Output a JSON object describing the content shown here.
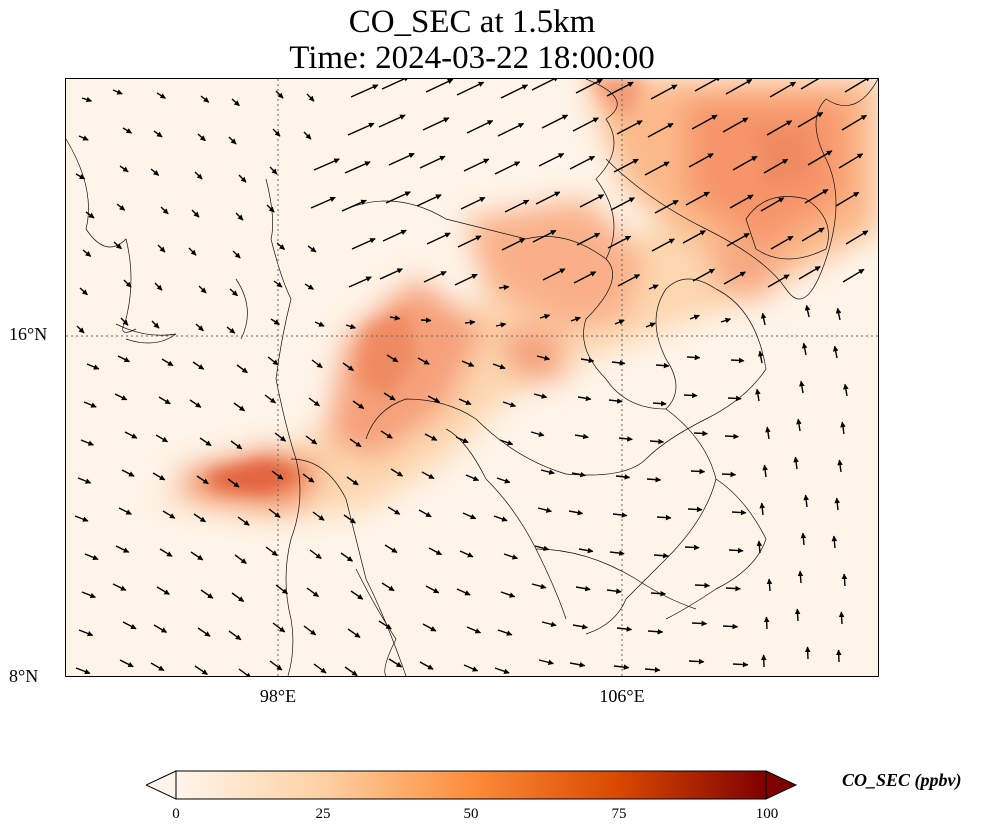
{
  "title": {
    "line1": "CO_SEC at 1.5km",
    "line2": "Time: 2024-03-22 18:00:00"
  },
  "map": {
    "latitude_ticks": [
      "16°N",
      "8°N"
    ],
    "longitude_ticks": [
      "98°E",
      "106°E"
    ],
    "gridline_style": "dotted",
    "field": "CO_SEC concentration with wind vectors"
  },
  "colorbar": {
    "label": "CO_SEC (ppbv)",
    "ticks": [
      "0",
      "25",
      "50",
      "75",
      "100"
    ],
    "range": [
      0,
      100
    ],
    "extend": "both",
    "colormap": [
      "#fff5eb",
      "#fdd0a2",
      "#fd8d3c",
      "#d94801",
      "#7f0000"
    ]
  }
}
